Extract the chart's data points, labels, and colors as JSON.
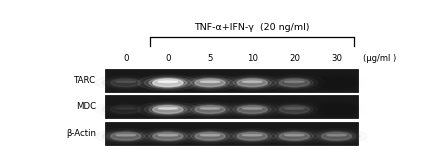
{
  "title": "TNF-α+IFN-γ  (20 ng/ml)",
  "unit_label": "(μg/ml )",
  "col_labels": [
    "0",
    "0",
    "5",
    "10",
    "20",
    "30"
  ],
  "row_labels": [
    "TARC",
    "MDC",
    "β-Actin"
  ],
  "fig_width": 4.41,
  "fig_height": 1.68,
  "dpi": 100,
  "gel_bg": "#181818",
  "border_color": "#555555",
  "tarc_intensities": [
    0.38,
    0.9,
    0.72,
    0.68,
    0.52,
    0.08
  ],
  "mdc_intensities": [
    0.28,
    0.75,
    0.62,
    0.58,
    0.42,
    0.08
  ],
  "actin_intensities": [
    0.58,
    0.62,
    0.62,
    0.6,
    0.58,
    0.54
  ]
}
